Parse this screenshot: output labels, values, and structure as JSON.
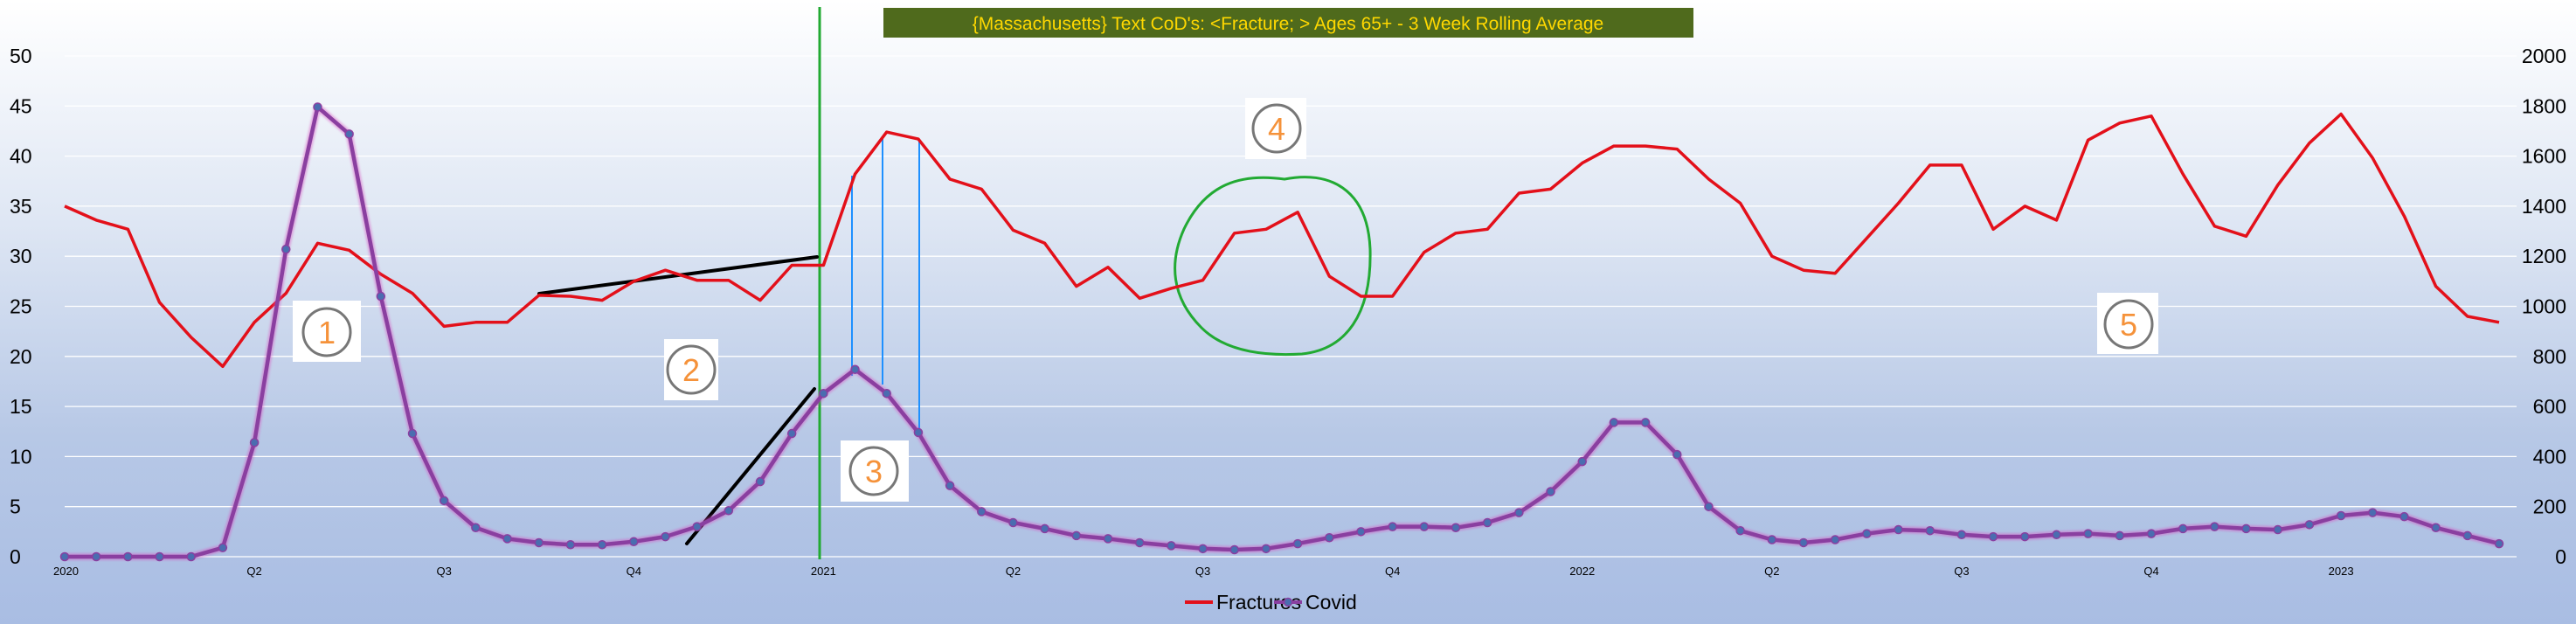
{
  "chart_data": {
    "type": "line",
    "title": "{Massachusetts}  Text CoD's: <Fracture; > Ages 65+ - 3 Week Rolling Average",
    "y_left": {
      "ticks": [
        "0",
        "5",
        "10",
        "15",
        "20",
        "25",
        "30",
        "35",
        "40",
        "45",
        "50"
      ],
      "range": [
        0,
        50
      ]
    },
    "y_right": {
      "ticks": [
        "0",
        "200",
        "400",
        "600",
        "800",
        "1000",
        "1200",
        "1400",
        "1600",
        "1800",
        "2000"
      ],
      "range": [
        0,
        2000
      ]
    },
    "x_ticks": [
      {
        "label": "2020",
        "i": 0
      },
      {
        "label": "Q2",
        "i": 6
      },
      {
        "label": "Q3",
        "i": 12
      },
      {
        "label": "Q4",
        "i": 18
      },
      {
        "label": "2021",
        "i": 24
      },
      {
        "label": "Q2",
        "i": 30
      },
      {
        "label": "Q3",
        "i": 36
      },
      {
        "label": "Q4",
        "i": 42
      },
      {
        "label": "2022",
        "i": 48
      },
      {
        "label": "Q2",
        "i": 54
      },
      {
        "label": "Q3",
        "i": 60
      },
      {
        "label": "Q4",
        "i": 66
      },
      {
        "label": "2023",
        "i": 72
      }
    ],
    "series": [
      {
        "name": "Fractures",
        "axis": "left",
        "color": "#e3101a",
        "markers": false,
        "values": [
          35,
          33.6,
          32.7,
          25.4,
          21.9,
          19,
          23.4,
          26.3,
          31.3,
          30.6,
          28.2,
          26.3,
          23,
          23.4,
          23.4,
          26.1,
          26,
          25.6,
          27.5,
          28.6,
          27.6,
          27.6,
          25.6,
          29.1,
          29.1,
          38.2,
          42.4,
          41.7,
          37.7,
          36.7,
          32.6,
          31.3,
          27,
          28.9,
          25.8,
          26.8,
          27.6,
          32.3,
          32.7,
          34.4,
          28,
          26,
          26,
          30.4,
          32.3,
          32.7,
          36.3,
          36.7,
          39.3,
          41,
          41,
          40.7,
          37.7,
          35.3,
          30,
          28.6,
          28.3,
          31.8,
          35.3,
          39.1,
          39.1,
          32.7,
          35,
          33.6,
          41.6,
          43.3,
          44,
          38.2,
          33,
          32,
          37.1,
          41.3,
          44.2,
          39.8,
          34,
          27,
          24,
          23.4
        ]
      },
      {
        "name": "Covid",
        "axis": "right",
        "color": "#8a3fa0",
        "markers": true,
        "values": [
          0,
          0,
          0,
          0,
          0,
          36,
          456,
          1228,
          1796,
          1688,
          1040,
          492,
          224,
          116,
          72,
          56,
          48,
          48,
          60,
          80,
          120,
          184,
          300,
          492,
          652,
          748,
          652,
          496,
          284,
          180,
          136,
          112,
          84,
          72,
          56,
          44,
          32,
          28,
          32,
          52,
          76,
          100,
          120,
          120,
          116,
          136,
          176,
          260,
          380,
          536,
          536,
          408,
          200,
          104,
          68,
          56,
          68,
          92,
          108,
          104,
          88,
          80,
          80,
          88,
          92,
          84,
          92,
          112,
          120,
          112,
          108,
          128,
          164,
          176,
          160,
          116,
          84,
          52
        ]
      }
    ],
    "annotations": [
      "1",
      "2",
      "3",
      "4",
      "5"
    ],
    "legend": {
      "position": "bottom-center",
      "items": [
        "Fractures",
        "Covid"
      ]
    }
  }
}
